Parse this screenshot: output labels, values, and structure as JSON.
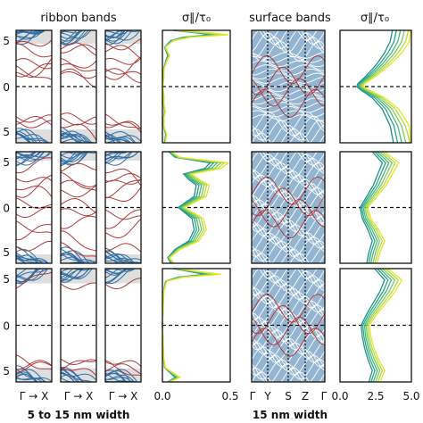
{
  "chart_data": {
    "type": "line",
    "headers": {
      "ribbon_title": "ribbon bands",
      "surface_title": "surface bands",
      "cond_title_1": "σ∥/τ₀",
      "cond_title_2": "σ∥/τ₀"
    },
    "ribbon_xlabels": [
      "Γ → X",
      "Γ → X",
      "Γ → X"
    ],
    "cond1_ticks": [
      "0.0",
      "0.5"
    ],
    "cond1_range": [
      0,
      0.5
    ],
    "surface_ticks": [
      "Γ",
      "Y",
      "S",
      "Z",
      "Γ"
    ],
    "cond2_ticks": [
      "0.0",
      "2.5",
      "5.0"
    ],
    "cond2_range": [
      0,
      5
    ],
    "ylabels": [
      "5",
      "0",
      "5"
    ],
    "bottom_labels": {
      "left": "5 to 15 nm width",
      "right": "15 nm width"
    },
    "colors": {
      "band_blue": "#2f6ea5",
      "band_red": "#b03a3a",
      "gap_shade": "#dedede",
      "viridis": [
        "#1f8f8c",
        "#2aa58a",
        "#48b97a",
        "#7bcc61",
        "#b3d94a",
        "#e6e423"
      ]
    },
    "rows": [
      {
        "cond1": {
          "y": [
            -1.0,
            -0.85,
            -0.7,
            -0.55,
            -0.45,
            -0.3,
            -0.15,
            0.0,
            0.15,
            0.3,
            0.45,
            0.55,
            0.7,
            0.82,
            0.88,
            0.92,
            0.95,
            1.0
          ],
          "x": [
            0.02,
            0.03,
            0.01,
            0.01,
            0.02,
            0.01,
            0.01,
            0.0,
            0.01,
            0.01,
            0.03,
            0.05,
            0.02,
            0.08,
            0.2,
            0.45,
            0.35,
            0.1
          ]
        },
        "cond2": {
          "y": [
            -1.0,
            -0.7,
            -0.4,
            -0.2,
            -0.05,
            0.0,
            0.05,
            0.2,
            0.4,
            0.6,
            0.8,
            1.0
          ],
          "x": [
            4.8,
            4.5,
            3.8,
            2.9,
            1.8,
            1.5,
            1.6,
            2.4,
            3.3,
            4.0,
            4.5,
            4.7
          ]
        }
      },
      {
        "cond1": {
          "y": [
            -1.0,
            -0.9,
            -0.75,
            -0.6,
            -0.4,
            -0.2,
            0.0,
            0.2,
            0.4,
            0.5,
            0.6,
            0.7,
            0.8,
            0.9,
            1.0
          ],
          "x": [
            0.08,
            0.05,
            0.12,
            0.25,
            0.3,
            0.28,
            0.15,
            0.3,
            0.32,
            0.25,
            0.2,
            0.4,
            0.45,
            0.12,
            0.06
          ]
        },
        "cond2": {
          "y": [
            -1.0,
            -0.8,
            -0.6,
            -0.4,
            -0.2,
            0.0,
            0.2,
            0.4,
            0.6,
            0.8,
            1.0
          ],
          "x": [
            2.4,
            2.6,
            2.9,
            2.5,
            2.0,
            1.8,
            2.4,
            3.0,
            3.4,
            3.8,
            2.9
          ]
        }
      },
      {
        "cond1": {
          "y": [
            -1.0,
            -0.92,
            -0.85,
            -0.75,
            -0.6,
            -0.3,
            0.0,
            0.3,
            0.6,
            0.78,
            0.85,
            0.9,
            1.0
          ],
          "x": [
            0.05,
            0.12,
            0.08,
            0.02,
            0.01,
            0.005,
            0.0,
            0.005,
            0.01,
            0.03,
            0.15,
            0.4,
            0.1
          ]
        },
        "cond2": {
          "y": [
            -1.0,
            -0.8,
            -0.6,
            -0.4,
            -0.2,
            0.0,
            0.2,
            0.4,
            0.6,
            0.8,
            1.0
          ],
          "x": [
            2.6,
            2.9,
            2.5,
            2.2,
            2.0,
            1.9,
            2.4,
            3.0,
            3.6,
            4.0,
            3.1
          ]
        }
      }
    ]
  }
}
